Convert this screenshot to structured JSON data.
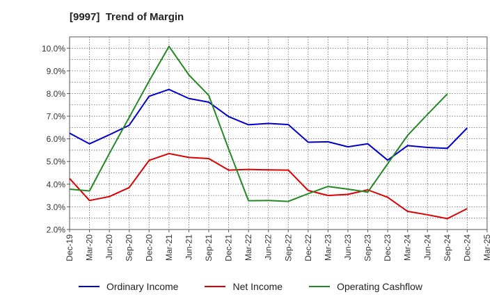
{
  "title": "[9997]  Trend of Margin",
  "chart_data": {
    "type": "line",
    "title": "[9997]  Trend of Margin",
    "xlabel": "",
    "ylabel": "",
    "categories": [
      "Dec-19",
      "Mar-20",
      "Jun-20",
      "Sep-20",
      "Dec-20",
      "Mar-21",
      "Jun-21",
      "Sep-21",
      "Dec-21",
      "Mar-22",
      "Jun-22",
      "Sep-22",
      "Dec-22",
      "Mar-23",
      "Jun-23",
      "Sep-23",
      "Dec-23",
      "Mar-24",
      "Jun-24",
      "Sep-24",
      "Dec-24",
      "Mar-25"
    ],
    "y_tick_labels": [
      "2.0%",
      "3.0%",
      "4.0%",
      "5.0%",
      "6.0%",
      "7.0%",
      "8.0%",
      "9.0%",
      "10.0%"
    ],
    "ylim": [
      2.0,
      10.5
    ],
    "grid": true,
    "legend_position": "bottom",
    "series": [
      {
        "name": "Ordinary Income",
        "color": "#0000cc",
        "values": [
          6.25,
          5.78,
          6.18,
          6.6,
          7.88,
          8.18,
          7.78,
          7.62,
          6.98,
          6.62,
          6.68,
          6.63,
          5.85,
          5.87,
          5.65,
          5.78,
          5.06,
          5.7,
          5.62,
          5.58,
          6.48,
          null
        ]
      },
      {
        "name": "Net Income",
        "color": "#dd0000",
        "values": [
          4.25,
          3.28,
          3.45,
          3.85,
          5.05,
          5.35,
          5.18,
          5.13,
          4.62,
          4.65,
          4.63,
          4.62,
          3.72,
          3.5,
          3.55,
          3.75,
          3.42,
          2.8,
          2.65,
          2.48,
          2.92,
          null
        ]
      },
      {
        "name": "Operating Cashflow",
        "color": "#228822",
        "values": [
          3.78,
          3.7,
          5.35,
          6.95,
          8.55,
          10.08,
          8.82,
          7.92,
          5.55,
          3.27,
          3.28,
          3.24,
          3.58,
          3.9,
          3.78,
          3.65,
          4.9,
          6.15,
          7.08,
          7.98,
          null,
          null
        ]
      }
    ]
  }
}
